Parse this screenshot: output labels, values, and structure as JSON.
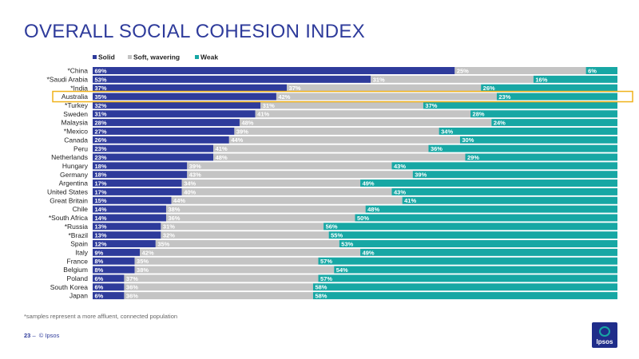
{
  "page": {
    "title": "OVERALL SOCIAL COHESION INDEX",
    "footnote": "*samples represent a more affluent, connected population",
    "page_number": "23",
    "page_separator": "–",
    "copyright": "© Ipsos",
    "logo_text": "Ipsos"
  },
  "colors": {
    "solid": "#2e3b9b",
    "soft": "#c4c4c4",
    "weak": "#17a7a4",
    "highlight": "#f0b21b"
  },
  "chart_data": {
    "type": "bar",
    "orientation": "horizontal",
    "stacked": true,
    "title": "OVERALL SOCIAL COHESION INDEX",
    "legend_position": "top-left",
    "highlighted_category": "Australia",
    "categories": [
      "*China",
      "*Saudi Arabia",
      "*India",
      "Australia",
      "*Turkey",
      "Sweden",
      "Malaysia",
      "*Mexico",
      "Canada",
      "Peru",
      "Netherlands",
      "Hungary",
      "Germany",
      "Argentina",
      "United States",
      "Great Britain",
      "Chile",
      "*South Africa",
      "*Russia",
      "*Brazil",
      "Spain",
      "Italy",
      "France",
      "Belgium",
      "Poland",
      "South Korea",
      "Japan"
    ],
    "series": [
      {
        "name": "Solid",
        "values": [
          69,
          53,
          37,
          35,
          32,
          31,
          28,
          27,
          26,
          23,
          23,
          18,
          18,
          17,
          17,
          15,
          14,
          14,
          13,
          13,
          12,
          9,
          8,
          8,
          6,
          6,
          6
        ]
      },
      {
        "name": "Soft, wavering",
        "values": [
          25,
          31,
          37,
          42,
          31,
          41,
          48,
          39,
          44,
          41,
          48,
          39,
          43,
          34,
          40,
          44,
          38,
          36,
          31,
          32,
          35,
          42,
          35,
          38,
          37,
          36,
          36
        ]
      },
      {
        "name": "Weak",
        "values": [
          6,
          16,
          26,
          23,
          37,
          28,
          24,
          34,
          30,
          36,
          29,
          43,
          39,
          49,
          43,
          41,
          48,
          50,
          56,
          55,
          53,
          49,
          57,
          54,
          57,
          58,
          58
        ]
      }
    ]
  }
}
